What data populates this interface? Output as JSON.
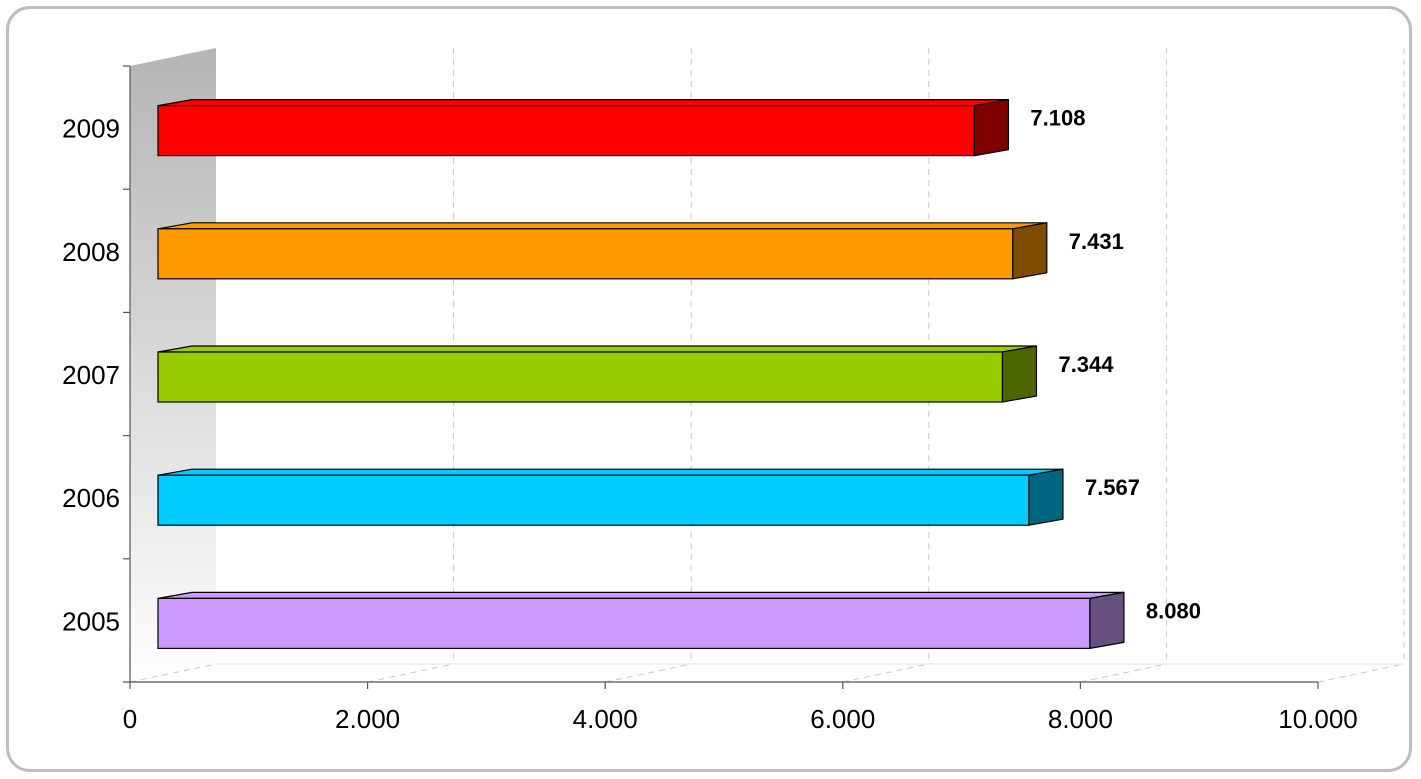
{
  "chart_data": {
    "type": "bar",
    "orientation": "horizontal",
    "style": "3d",
    "categories": [
      "2005",
      "2006",
      "2007",
      "2008",
      "2009"
    ],
    "values": [
      8080,
      7567,
      7344,
      7431,
      7108
    ],
    "data_labels": [
      "8.080",
      "7.567",
      "7.344",
      "7.431",
      "7.108"
    ],
    "bar_colors": [
      "#CC99FF",
      "#00CCFF",
      "#99CC00",
      "#FF9900",
      "#FF0000"
    ],
    "bar_side_colors": [
      "#66507F",
      "#00667F",
      "#4D6600",
      "#7F4D00",
      "#800000"
    ],
    "xlim": [
      0,
      10000
    ],
    "x_ticks": [
      0,
      2000,
      4000,
      6000,
      8000,
      10000
    ],
    "x_tick_labels": [
      "0",
      "2.000",
      "4.000",
      "6.000",
      "8.000",
      "10.000"
    ],
    "xlabel": "",
    "ylabel": "",
    "title": "",
    "grid": "vertical dashed",
    "legend": "none"
  }
}
